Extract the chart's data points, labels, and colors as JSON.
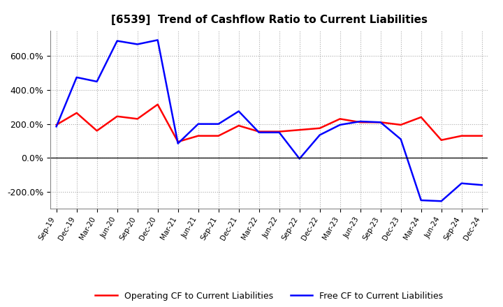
{
  "title": "[6539]  Trend of Cashflow Ratio to Current Liabilities",
  "x_labels": [
    "Sep-19",
    "Dec-19",
    "Mar-20",
    "Jun-20",
    "Sep-20",
    "Dec-20",
    "Mar-21",
    "Jun-21",
    "Sep-21",
    "Dec-21",
    "Mar-22",
    "Jun-22",
    "Sep-22",
    "Dec-22",
    "Mar-23",
    "Jun-23",
    "Sep-23",
    "Dec-23",
    "Mar-24",
    "Jun-24",
    "Sep-24",
    "Dec-24"
  ],
  "operating_cf": [
    195,
    265,
    160,
    245,
    230,
    315,
    95,
    130,
    130,
    190,
    155,
    155,
    165,
    175,
    230,
    210,
    210,
    195,
    240,
    105,
    130,
    130
  ],
  "free_cf": [
    185,
    475,
    450,
    690,
    670,
    695,
    85,
    200,
    200,
    275,
    150,
    150,
    -5,
    135,
    195,
    215,
    210,
    110,
    -250,
    -255,
    -150,
    -160
  ],
  "ylim": [
    -300,
    750
  ],
  "yticks": [
    -200,
    0,
    200,
    400,
    600
  ],
  "ytick_labels": [
    "-200.0%",
    "0.0%",
    "200.0%",
    "400.0%",
    "600.0%"
  ],
  "operating_color": "#FF0000",
  "free_color": "#0000FF",
  "grid_color": "#AAAAAA",
  "background_color": "#FFFFFF",
  "legend_labels": [
    "Operating CF to Current Liabilities",
    "Free CF to Current Liabilities"
  ]
}
